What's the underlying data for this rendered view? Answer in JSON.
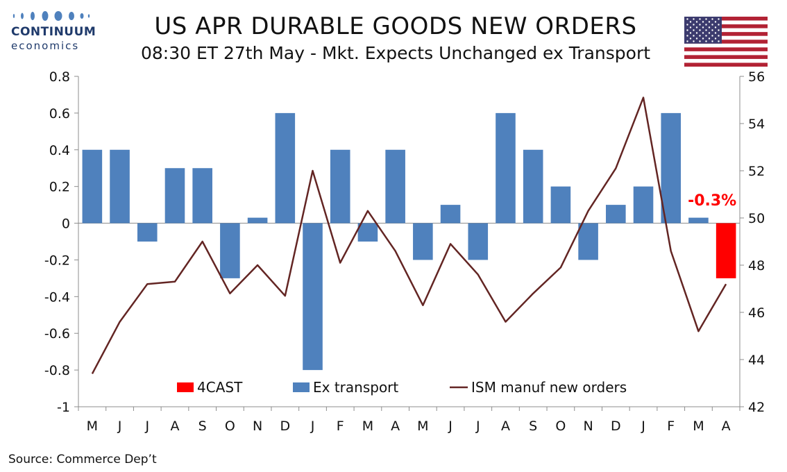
{
  "header": {
    "logo_name": "CONTINUUM",
    "logo_sub": "economics",
    "title": "US APR DURABLE GOODS NEW ORDERS",
    "subtitle": "08:30 ET 27th May - Mkt. Expects Unchanged ex Transport"
  },
  "footer": {
    "source": "Source: Commerce Dep’t"
  },
  "colors": {
    "bar": "#4f81bd",
    "forecast": "#ff0000",
    "line": "#632523",
    "grid": "#8c8c8c"
  },
  "chart_data": {
    "type": "bar",
    "categories": [
      "M",
      "J",
      "J",
      "A",
      "S",
      "O",
      "N",
      "D",
      "J",
      "F",
      "M",
      "A",
      "M",
      "J",
      "J",
      "A",
      "S",
      "O",
      "N",
      "D",
      "J",
      "F",
      "M",
      "A"
    ],
    "series": [
      {
        "name": "Ex transport",
        "axis": "left",
        "type": "bar",
        "values": [
          0.4,
          0.4,
          -0.1,
          0.3,
          0.3,
          -0.3,
          0.03,
          0.6,
          -0.8,
          0.4,
          -0.1,
          0.4,
          -0.2,
          0.1,
          -0.2,
          0.6,
          0.4,
          0.2,
          -0.2,
          0.1,
          0.2,
          0.6,
          0.03,
          null
        ]
      },
      {
        "name": "4CAST",
        "axis": "left",
        "type": "bar",
        "values": [
          null,
          null,
          null,
          null,
          null,
          null,
          null,
          null,
          null,
          null,
          null,
          null,
          null,
          null,
          null,
          null,
          null,
          null,
          null,
          null,
          null,
          null,
          null,
          -0.3
        ]
      },
      {
        "name": "ISM manuf new orders",
        "axis": "right",
        "type": "line",
        "values": [
          43.4,
          45.6,
          47.2,
          47.3,
          49.0,
          46.8,
          48.0,
          46.7,
          52.0,
          48.1,
          50.3,
          48.6,
          46.3,
          48.9,
          47.6,
          45.6,
          46.8,
          47.9,
          50.3,
          52.1,
          55.1,
          48.6,
          45.2,
          47.2
        ]
      }
    ],
    "legend_order": [
      "4CAST",
      "Ex transport",
      "ISM manuf new orders"
    ],
    "annotation": "-0.3%",
    "ylim": [
      -1,
      0.8
    ],
    "yticks": [
      "0.8",
      "0.6",
      "0.4",
      "0.2",
      "0",
      "-0.2",
      "-0.4",
      "-0.6",
      "-0.8",
      "-1"
    ],
    "y2lim": [
      42,
      56
    ],
    "y2ticks": [
      "56",
      "54",
      "52",
      "50",
      "48",
      "46",
      "44",
      "42"
    ],
    "legend_position": "bottom",
    "grid": false
  }
}
